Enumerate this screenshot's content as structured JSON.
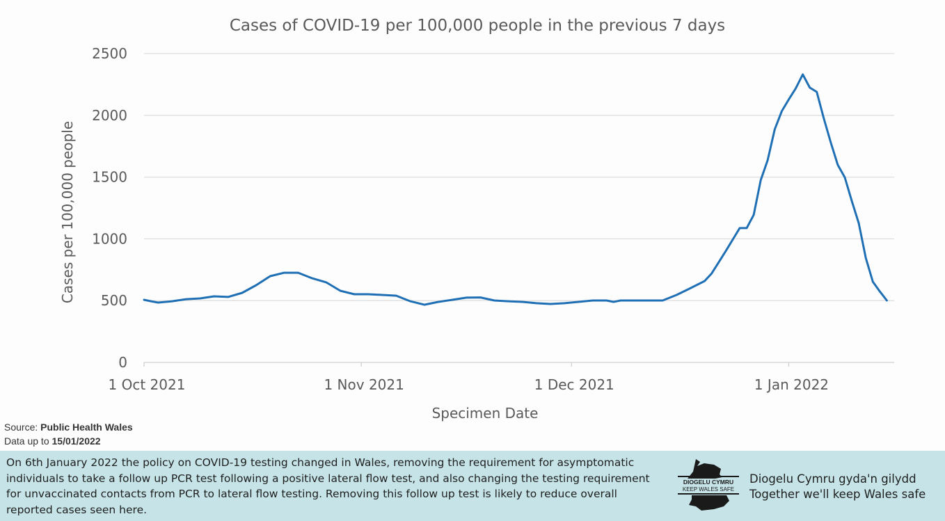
{
  "chart_data": {
    "type": "line",
    "title": "Cases of COVID-19 per 100,000 people in the previous 7 days",
    "xlabel": "Specimen Date",
    "ylabel": "Cases per 100,000 people",
    "ylim": [
      0,
      2500
    ],
    "yticks": [
      0,
      500,
      1000,
      1500,
      2000,
      2500
    ],
    "xlim": [
      "2021-10-01",
      "2022-01-15"
    ],
    "xticks": [
      {
        "date": "2021-10-01",
        "label": "1 Oct 2021"
      },
      {
        "date": "2021-11-01",
        "label": "1 Nov 2021"
      },
      {
        "date": "2021-12-01",
        "label": "1 Dec 2021"
      },
      {
        "date": "2022-01-01",
        "label": "1 Jan 2022"
      }
    ],
    "grid": "horizontal",
    "line_color": "#1f6fb5",
    "points": [
      [
        "2021-10-01",
        507
      ],
      [
        "2021-10-02",
        495
      ],
      [
        "2021-10-03",
        484
      ],
      [
        "2021-10-05",
        495
      ],
      [
        "2021-10-07",
        512
      ],
      [
        "2021-10-09",
        518
      ],
      [
        "2021-10-11",
        535
      ],
      [
        "2021-10-13",
        530
      ],
      [
        "2021-10-15",
        563
      ],
      [
        "2021-10-17",
        625
      ],
      [
        "2021-10-19",
        698
      ],
      [
        "2021-10-21",
        726
      ],
      [
        "2021-10-23",
        726
      ],
      [
        "2021-10-25",
        681
      ],
      [
        "2021-10-27",
        648
      ],
      [
        "2021-10-29",
        580
      ],
      [
        "2021-10-31",
        552
      ],
      [
        "2021-11-02",
        552
      ],
      [
        "2021-11-04",
        546
      ],
      [
        "2021-11-06",
        540
      ],
      [
        "2021-11-08",
        495
      ],
      [
        "2021-11-10",
        467
      ],
      [
        "2021-11-12",
        490
      ],
      [
        "2021-11-14",
        507
      ],
      [
        "2021-11-16",
        524
      ],
      [
        "2021-11-18",
        526
      ],
      [
        "2021-11-20",
        501
      ],
      [
        "2021-11-22",
        495
      ],
      [
        "2021-11-24",
        490
      ],
      [
        "2021-11-26",
        479
      ],
      [
        "2021-11-28",
        473
      ],
      [
        "2021-11-30",
        479
      ],
      [
        "2021-12-02",
        490
      ],
      [
        "2021-12-04",
        501
      ],
      [
        "2021-12-06",
        501
      ],
      [
        "2021-12-07",
        490
      ],
      [
        "2021-12-08",
        501
      ],
      [
        "2021-12-14",
        501
      ],
      [
        "2021-12-16",
        546
      ],
      [
        "2021-12-18",
        602
      ],
      [
        "2021-12-20",
        659
      ],
      [
        "2021-12-21",
        720
      ],
      [
        "2021-12-23",
        900
      ],
      [
        "2021-12-25",
        1087
      ],
      [
        "2021-12-26",
        1087
      ],
      [
        "2021-12-27",
        1194
      ],
      [
        "2021-12-28",
        1475
      ],
      [
        "2021-12-29",
        1638
      ],
      [
        "2021-12-30",
        1886
      ],
      [
        "2021-12-31",
        2033
      ],
      [
        "2022-01-01",
        2128
      ],
      [
        "2022-01-02",
        2218
      ],
      [
        "2022-01-03",
        2331
      ],
      [
        "2022-01-04",
        2224
      ],
      [
        "2022-01-05",
        2190
      ],
      [
        "2022-01-06",
        1976
      ],
      [
        "2022-01-07",
        1779
      ],
      [
        "2022-01-08",
        1599
      ],
      [
        "2022-01-09",
        1498
      ],
      [
        "2022-01-10",
        1306
      ],
      [
        "2022-01-11",
        1126
      ],
      [
        "2022-01-12",
        845
      ],
      [
        "2022-01-13",
        653
      ],
      [
        "2022-01-14",
        574
      ],
      [
        "2022-01-15",
        501
      ]
    ]
  },
  "source": {
    "label": "Source: ",
    "value": "Public Health Wales"
  },
  "data_date": {
    "label": "Data up to ",
    "value": "15/01/2022"
  },
  "banner": {
    "note": "On 6th January 2022 the policy on COVID-19 testing changed in Wales, removing the requirement for asymptomatic individuals to take a follow up PCR test following a positive lateral flow test, and also changing the testing requirement for unvaccinated contacts from PCR to lateral flow testing. Removing this follow up test is likely to reduce overall reported cases seen here.",
    "logo_text_1": "DIOGELU CYMRU",
    "logo_text_2": "KEEP WALES SAFE",
    "tagline_welsh": "Diogelu Cymru gyda'n gilydd",
    "tagline_english": "Together we'll keep Wales safe",
    "color": "#c6e4e7"
  }
}
